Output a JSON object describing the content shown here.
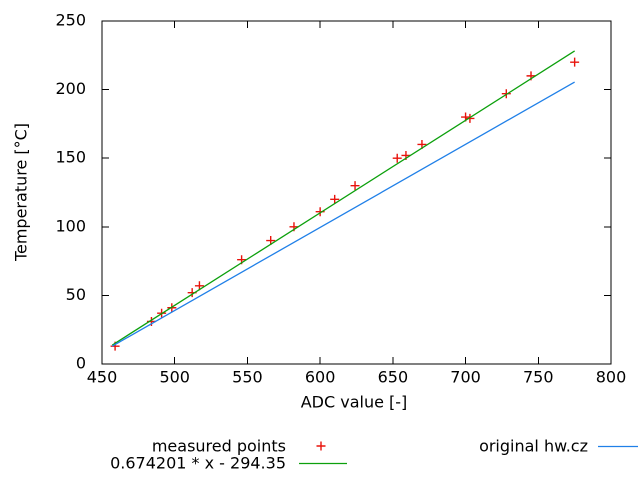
{
  "chart_data": {
    "type": "scatter",
    "title": "",
    "xlabel": "ADC value [-]",
    "ylabel": "Temperature [°C]",
    "xlim": [
      450,
      800
    ],
    "ylim": [
      0,
      250
    ],
    "x_ticks": [
      450,
      500,
      550,
      600,
      650,
      700,
      750,
      800
    ],
    "y_ticks": [
      0,
      50,
      100,
      150,
      200,
      250
    ],
    "grid": "off",
    "legend_position": "below",
    "series": [
      {
        "name": "measured points",
        "type": "points",
        "marker": "plus",
        "color": "#e8130c",
        "points": [
          [
            459,
            13
          ],
          [
            484,
            31
          ],
          [
            491,
            37
          ],
          [
            498,
            41
          ],
          [
            512,
            52
          ],
          [
            517,
            57
          ],
          [
            546,
            76
          ],
          [
            566,
            90
          ],
          [
            582,
            100
          ],
          [
            600,
            111
          ],
          [
            610,
            120
          ],
          [
            624,
            130
          ],
          [
            653,
            150
          ],
          [
            659,
            152
          ],
          [
            670,
            160
          ],
          [
            700,
            180
          ],
          [
            703,
            179
          ],
          [
            728,
            197
          ],
          [
            745,
            210
          ],
          [
            775,
            220
          ]
        ]
      },
      {
        "name": "0.674201 * x - 294.35",
        "type": "line",
        "color": "#0ca00c",
        "equation": {
          "slope": 0.674201,
          "intercept": -294.35
        },
        "x_range": [
          457,
          775
        ]
      },
      {
        "name": "original hw.cz",
        "type": "line",
        "color": "#2080e8",
        "points": [
          [
            457,
            13
          ],
          [
            775,
            205.5
          ]
        ]
      }
    ]
  },
  "legend": {
    "measured_label": "measured points",
    "fit_label": "0.674201 * x - 294.35",
    "original_label": "original hw.cz"
  },
  "axes": {
    "x_title": "ADC value [-]",
    "y_title": "Temperature [°C]"
  },
  "colors": {
    "measured": "#e8130c",
    "fit": "#0ca00c",
    "original": "#2080e8",
    "frame": "#000000"
  }
}
